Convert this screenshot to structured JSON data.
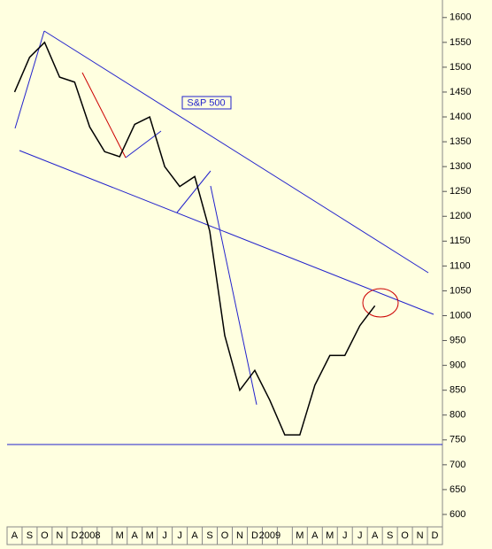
{
  "chart_data": {
    "type": "line",
    "title": "S&P 500",
    "categories": [
      "A",
      "S",
      "O",
      "N",
      "D",
      "2008",
      null,
      "M",
      "A",
      "M",
      "J",
      "J",
      "A",
      "S",
      "O",
      "N",
      "D",
      "2009",
      null,
      "M",
      "A",
      "M",
      "J",
      "J",
      "A",
      "S",
      "O",
      "N",
      "D"
    ],
    "series": [
      {
        "name": "S&P 500",
        "color": "#000000",
        "values": [
          1450,
          1520,
          1550,
          1480,
          1470,
          1380,
          1330,
          1320,
          1385,
          1400,
          1300,
          1260,
          1280,
          1170,
          960,
          850,
          890,
          830,
          760,
          760,
          860,
          920,
          920,
          980,
          1020,
          null,
          null,
          null,
          null
        ]
      }
    ],
    "ylim": [
      575,
      1621
    ],
    "yticks": [
      600,
      650,
      700,
      750,
      800,
      850,
      900,
      950,
      1000,
      1050,
      1100,
      1150,
      1200,
      1250,
      1300,
      1350,
      1400,
      1450,
      1500,
      1550,
      1600
    ],
    "background": "#ffffe0"
  }
}
